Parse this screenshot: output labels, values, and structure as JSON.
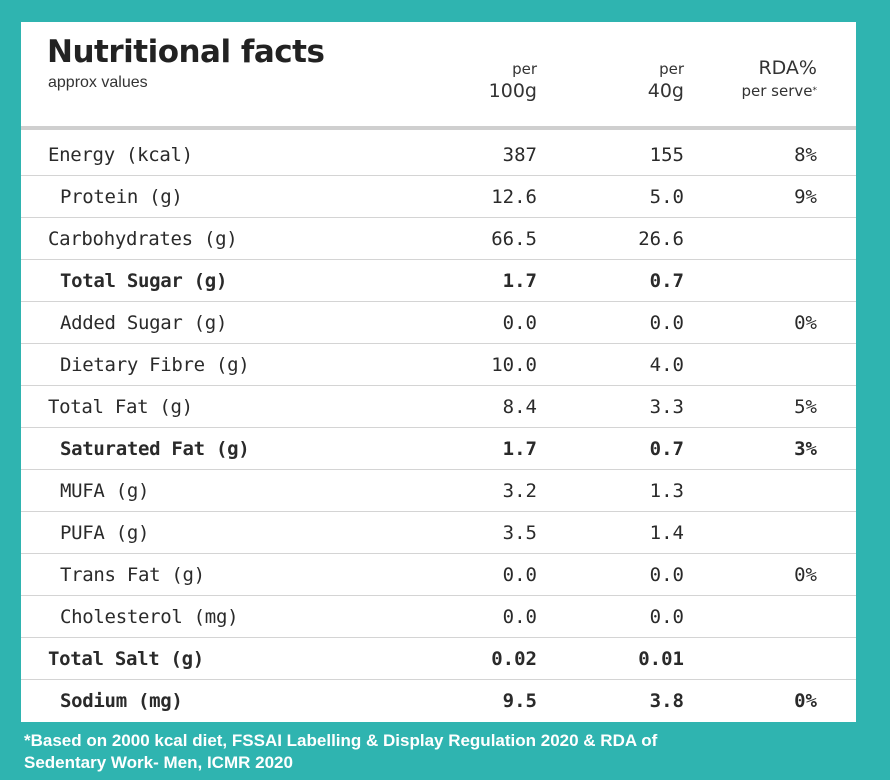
{
  "header": {
    "title": "Nutritional facts",
    "subtitle": "approx values",
    "col_per100_top": "per",
    "col_per100_bottom": "100g",
    "col_per40_top": "per",
    "col_per40_bottom": "40g",
    "col_rda_top": "RDA%",
    "col_rda_bottom": "per serve",
    "col_rda_mark": "*"
  },
  "rows": [
    {
      "label": "Energy (kcal)",
      "per100": "387",
      "per40": "155",
      "rda": "8%",
      "bold": false,
      "indent": false
    },
    {
      "label": "Protein (g)",
      "per100": "12.6",
      "per40": "5.0",
      "rda": "9%",
      "bold": false,
      "indent": true
    },
    {
      "label": "Carbohydrates (g)",
      "per100": "66.5",
      "per40": "26.6",
      "rda": "",
      "bold": false,
      "indent": false
    },
    {
      "label": "Total Sugar (g)",
      "per100": "1.7",
      "per40": "0.7",
      "rda": "",
      "bold": true,
      "indent": true
    },
    {
      "label": "Added Sugar (g)",
      "per100": "0.0",
      "per40": "0.0",
      "rda": "0%",
      "bold": false,
      "indent": true
    },
    {
      "label": "Dietary Fibre (g)",
      "per100": "10.0",
      "per40": "4.0",
      "rda": "",
      "bold": false,
      "indent": true
    },
    {
      "label": "Total Fat (g)",
      "per100": "8.4",
      "per40": "3.3",
      "rda": "5%",
      "bold": false,
      "indent": false
    },
    {
      "label": "Saturated Fat (g)",
      "per100": "1.7",
      "per40": "0.7",
      "rda": "3%",
      "bold": true,
      "indent": true
    },
    {
      "label": "MUFA (g)",
      "per100": "3.2",
      "per40": "1.3",
      "rda": "",
      "bold": false,
      "indent": true
    },
    {
      "label": "PUFA (g)",
      "per100": "3.5",
      "per40": "1.4",
      "rda": "",
      "bold": false,
      "indent": true
    },
    {
      "label": "Trans Fat (g)",
      "per100": "0.0",
      "per40": "0.0",
      "rda": "0%",
      "bold": false,
      "indent": true
    },
    {
      "label": "Cholesterol (mg)",
      "per100": "0.0",
      "per40": "0.0",
      "rda": "",
      "bold": false,
      "indent": true
    },
    {
      "label": "Total Salt (g)",
      "per100": "0.02",
      "per40": "0.01",
      "rda": "",
      "bold": true,
      "indent": false
    },
    {
      "label": "Sodium (mg)",
      "per100": "9.5",
      "per40": "3.8",
      "rda": "0%",
      "bold": true,
      "indent": true
    }
  ],
  "footnote": {
    "line1": "*Based on 2000 kcal diet, FSSAI Labelling & Display Regulation 2020 & RDA of",
    "line2": "Sedentary Work- Men, ICMR 2020"
  },
  "colors": {
    "background": "#2fb4b0",
    "panel": "#ffffff",
    "text": "#2a2a2a"
  }
}
